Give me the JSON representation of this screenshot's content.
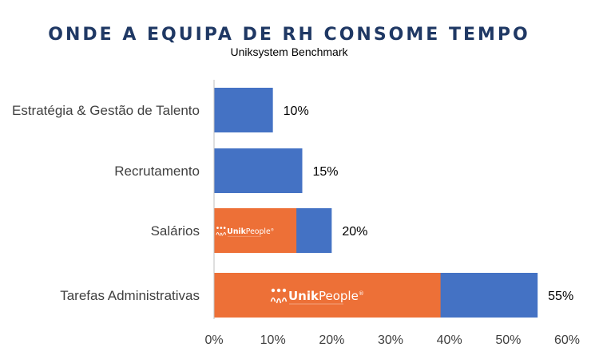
{
  "title": "ONDE A EQUIPA DE RH CONSOME TEMPO",
  "subtitle": "Uniksystem Benchmark",
  "colors": {
    "primary": "#4472c4",
    "accent": "#ed7037",
    "title": "#1f3864"
  },
  "logo": {
    "brand_bold": "Unik",
    "brand_light": "People",
    "registered": "®"
  },
  "chart_data": {
    "type": "bar",
    "orientation": "horizontal",
    "categories": [
      "Estratégia & Gestão de Talento",
      "Recrutamento",
      "Salários",
      "Tarefas Administrativas"
    ],
    "values": [
      10,
      15,
      20,
      55
    ],
    "value_labels": [
      "10%",
      "15%",
      "20%",
      "55%"
    ],
    "highlight_portion": [
      0,
      0,
      14,
      38.5
    ],
    "xlim": [
      0,
      60
    ],
    "x_ticks": [
      0,
      10,
      20,
      30,
      40,
      50,
      60
    ],
    "x_tick_labels": [
      "0%",
      "10%",
      "20%",
      "30%",
      "40%",
      "50%",
      "60%"
    ],
    "grid": false,
    "title": "ONDE A EQUIPA DE RH CONSOME TEMPO",
    "subtitle": "Uniksystem Benchmark"
  }
}
